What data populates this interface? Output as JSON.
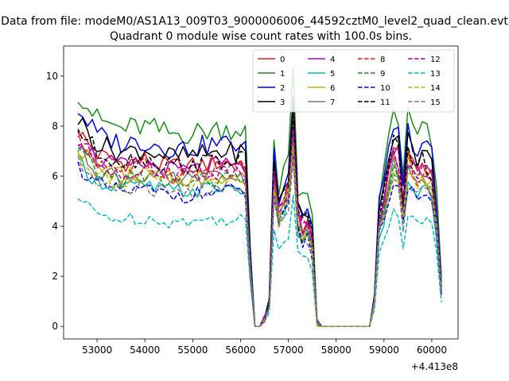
{
  "suptitle": "Data from file: modeM0/AS1A13_009T03_9000006006_44592cztM0_level2_quad_clean.evt",
  "title": "Quadrant 0 module wise count rates with 100.0s bins.",
  "chart_data": {
    "type": "line",
    "title": "Quadrant 0 module wise count rates with 100.0s bins.",
    "xlabel": "",
    "ylabel": "",
    "x_offset_label": "+4.413e8",
    "x_offset": 441300000,
    "xlim": [
      52300,
      60550
    ],
    "ylim": [
      -0.5,
      11.2
    ],
    "xticks": [
      53000,
      54000,
      55000,
      56000,
      57000,
      58000,
      59000,
      60000
    ],
    "yticks": [
      0,
      2,
      4,
      6,
      8,
      10
    ],
    "grid": false,
    "legend_position": "upper right",
    "legend_columns": 4,
    "x_start": 52600,
    "x_step": 100,
    "active_segments": [
      [
        52600,
        56100
      ],
      [
        56500,
        57600
      ],
      [
        58800,
        60200
      ]
    ],
    "gap_segments": [
      [
        56200,
        56400
      ],
      [
        57700,
        58700
      ]
    ],
    "series": [
      {
        "name": "0",
        "color": "#e31a1c",
        "dash": "solid",
        "base": 7.8
      },
      {
        "name": "1",
        "color": "#1a8a1a",
        "dash": "solid",
        "base": 9.4
      },
      {
        "name": "2",
        "color": "#0000e6",
        "dash": "solid",
        "base": 8.7
      },
      {
        "name": "3",
        "color": "#000000",
        "dash": "solid",
        "base": 8.3
      },
      {
        "name": "4",
        "color": "#b000b8",
        "dash": "solid",
        "base": 7.6
      },
      {
        "name": "5",
        "color": "#00bcbc",
        "dash": "solid",
        "base": 6.6
      },
      {
        "name": "6",
        "color": "#c8b400",
        "dash": "solid",
        "base": 7.2
      },
      {
        "name": "7",
        "color": "#7a7a7a",
        "dash": "solid",
        "base": 7.1
      },
      {
        "name": "8",
        "color": "#e31a1c",
        "dash": "dashed",
        "base": 7.5
      },
      {
        "name": "9",
        "color": "#1a8a1a",
        "dash": "dashed",
        "base": 7.0
      },
      {
        "name": "10",
        "color": "#0000e6",
        "dash": "dashed",
        "base": 6.4
      },
      {
        "name": "11",
        "color": "#000000",
        "dash": "dashed",
        "base": 7.9
      },
      {
        "name": "12",
        "color": "#b000b8",
        "dash": "dashed",
        "base": 7.4
      },
      {
        "name": "13",
        "color": "#00bcbc",
        "dash": "dashed",
        "base": 5.1
      },
      {
        "name": "14",
        "color": "#c8b400",
        "dash": "dashed",
        "base": 6.9
      },
      {
        "name": "15",
        "color": "#7a7a7a",
        "dash": "dashed",
        "base": 6.5
      }
    ],
    "envelope": {
      "x": [
        52600,
        53000,
        53500,
        54000,
        54500,
        55000,
        55500,
        56000,
        56100,
        56200,
        56300,
        56400,
        56500,
        56600,
        56700,
        56800,
        56900,
        57000,
        57100,
        57200,
        57300,
        57400,
        57500,
        57600,
        57700,
        58700,
        58800,
        58900,
        59000,
        59100,
        59200,
        59300,
        59400,
        59500,
        59600,
        59700,
        59800,
        59900,
        60000,
        60100,
        60200
      ],
      "rel": [
        1.0,
        0.88,
        0.84,
        0.85,
        0.82,
        0.82,
        0.84,
        0.84,
        0.83,
        0.32,
        0.01,
        0.0,
        0.04,
        0.12,
        0.8,
        0.6,
        0.68,
        0.73,
        1.06,
        0.58,
        0.52,
        0.55,
        0.45,
        0.02,
        0.0,
        0.0,
        0.13,
        0.55,
        0.65,
        0.8,
        0.92,
        0.88,
        0.62,
        0.9,
        0.85,
        0.8,
        0.84,
        0.82,
        0.78,
        0.55,
        0.2
      ]
    }
  }
}
